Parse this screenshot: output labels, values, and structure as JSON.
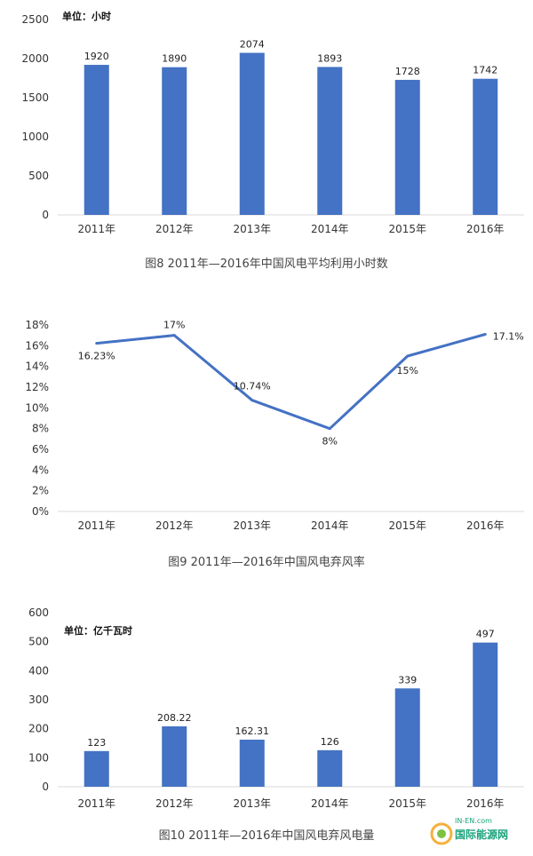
{
  "chart_data": [
    {
      "type": "bar",
      "unit_label": "单位：小时",
      "categories": [
        "2011年",
        "2012年",
        "2013年",
        "2014年",
        "2015年",
        "2016年"
      ],
      "values": [
        1920,
        1890,
        2074,
        1893,
        1728,
        1742
      ],
      "data_labels": [
        "1920",
        "1890",
        "2074",
        "1893",
        "1728",
        "1742"
      ],
      "y_ticks": [
        "0",
        "500",
        "1000",
        "1500",
        "2000",
        "2500"
      ],
      "ylim": [
        0,
        2500
      ],
      "caption": "图8  2011年—2016年中国风电平均利用小时数",
      "bar_color": "#4472c4",
      "grid": false
    },
    {
      "type": "line",
      "categories": [
        "2011年",
        "2012年",
        "2013年",
        "2014年",
        "2015年",
        "2016年"
      ],
      "values": [
        16.23,
        17,
        10.74,
        8,
        15,
        17.1
      ],
      "data_labels": [
        "16.23%",
        "17%",
        "10.74%",
        "8%",
        "15%",
        "17.1%"
      ],
      "y_ticks": [
        "0%",
        "2%",
        "4%",
        "6%",
        "8%",
        "10%",
        "12%",
        "14%",
        "16%",
        "18%"
      ],
      "ylim": [
        0,
        18
      ],
      "caption": "图9  2011年—2016年中国风电弃风率",
      "line_color": "#4472c4",
      "grid": false
    },
    {
      "type": "bar",
      "unit_label": "单位：亿千瓦时",
      "categories": [
        "2011年",
        "2012年",
        "2013年",
        "2014年",
        "2015年",
        "2016年"
      ],
      "values": [
        123,
        208.22,
        162.31,
        126,
        339,
        497
      ],
      "data_labels": [
        "123",
        "208.22",
        "162.31",
        "126",
        "339",
        "497"
      ],
      "y_ticks": [
        "0",
        "100",
        "200",
        "300",
        "400",
        "500",
        "600"
      ],
      "ylim": [
        0,
        600
      ],
      "caption": "图10  2011年—2016年中国风电弃风电量",
      "bar_color": "#4472c4",
      "grid": false
    }
  ],
  "watermark": {
    "top_text": "IN-EN.com",
    "main_text": "国际能源网"
  }
}
